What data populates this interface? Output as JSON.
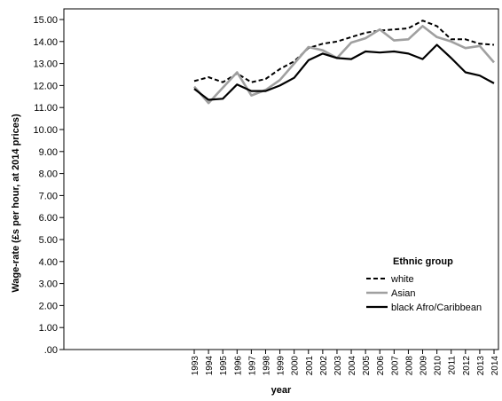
{
  "chart_data": {
    "type": "line",
    "xlabel": "year",
    "ylabel": "Wage-rate (£s per hour, at 2014 prices)",
    "ylim": [
      0,
      15.5
    ],
    "grid": false,
    "legend_position": "bottom-right",
    "legend_title": "Ethnic group",
    "categories": [
      "1993",
      "1994",
      "1995",
      "1996",
      "1997",
      "1998",
      "1999",
      "2000",
      "2001",
      "2002",
      "2003",
      "2004",
      "2005",
      "2006",
      "2007",
      "2008",
      "2009",
      "2010",
      "2011",
      "2012",
      "2013",
      "2014"
    ],
    "y_tick_labels": [
      ".00",
      "1.00",
      "2.00",
      "3.00",
      "4.00",
      "5.00",
      "6.00",
      "7.00",
      "8.00",
      "9.00",
      "10.00",
      "11.00",
      "12.00",
      "13.00",
      "14.00",
      "15.00"
    ],
    "series": [
      {
        "name": "white",
        "color": "#000000",
        "dash": "dashed",
        "values": [
          12.2,
          12.38,
          12.15,
          12.55,
          12.15,
          12.3,
          12.75,
          13.1,
          13.7,
          13.9,
          14.0,
          14.2,
          14.4,
          14.5,
          14.55,
          14.6,
          14.95,
          14.7,
          14.1,
          14.1,
          13.9,
          13.85
        ]
      },
      {
        "name": "Asian",
        "color": "#a0a0a0",
        "dash": "solid",
        "values": [
          11.95,
          11.2,
          11.9,
          12.6,
          11.55,
          11.8,
          12.25,
          13.0,
          13.75,
          13.6,
          13.25,
          13.95,
          14.15,
          14.55,
          14.05,
          14.1,
          14.7,
          14.2,
          14.0,
          13.7,
          13.8,
          13.05
        ]
      },
      {
        "name": "black Afro/Caribbean",
        "color": "#000000",
        "dash": "solid",
        "values": [
          11.85,
          11.35,
          11.4,
          12.05,
          11.75,
          11.75,
          12.0,
          12.35,
          13.15,
          13.45,
          13.25,
          13.2,
          13.55,
          13.5,
          13.55,
          13.45,
          13.2,
          13.85,
          13.25,
          12.6,
          12.45,
          12.1
        ]
      }
    ]
  }
}
